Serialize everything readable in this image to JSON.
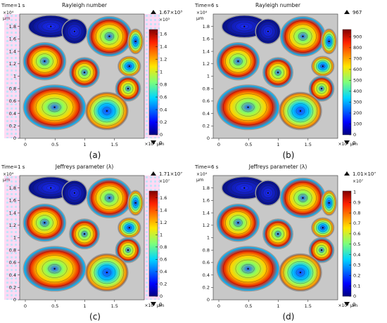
{
  "chart_data": [
    {
      "type": "heatmap",
      "panel": "(a)",
      "time_label": "Time=1 s",
      "title": "Rayleigh number",
      "y_exponent": "×10⁴",
      "y_unit": "µm",
      "x_exponent": "×10⁴",
      "x_unit": "µm",
      "x_ticks": [
        "0",
        "0.5",
        "1",
        "1.5"
      ],
      "y_ticks": [
        "0",
        "0.2",
        "0.4",
        "0.6",
        "0.8",
        "1",
        "1.2",
        "1.4",
        "1.6",
        "1.8"
      ],
      "colorbar": {
        "max_label": "1.67×10³",
        "exponent": "×10³",
        "ticks": [
          "0",
          "0.2",
          "0.4",
          "0.6",
          "0.8",
          "1",
          "1.2",
          "1.4",
          "1.6"
        ],
        "min_label": "0",
        "range": [
          0,
          1.67
        ]
      }
    },
    {
      "type": "heatmap",
      "panel": "(b)",
      "time_label": "Time=6 s",
      "title": "Rayleigh number",
      "y_exponent": "×10⁴",
      "y_unit": "µm",
      "x_exponent": "×10⁴",
      "x_unit": "µm",
      "x_ticks": [
        "0",
        "0.5",
        "1",
        "1.5"
      ],
      "y_ticks": [
        "0",
        "0.2",
        "0.4",
        "0.6",
        "0.8",
        "1",
        "1.2",
        "1.4",
        "1.6",
        "1.8"
      ],
      "colorbar": {
        "max_label": "967",
        "exponent": "",
        "ticks": [
          "0",
          "100",
          "200",
          "300",
          "400",
          "500",
          "600",
          "700",
          "800",
          "900"
        ],
        "min_label": "0",
        "range": [
          0,
          967
        ]
      }
    },
    {
      "type": "heatmap",
      "panel": "(c)",
      "time_label": "Time=1 s",
      "title": "Jeffreys parameter (λ)",
      "y_exponent": "×10⁴",
      "y_unit": "µm",
      "x_exponent": "×10⁴",
      "x_unit": "µm",
      "x_ticks": [
        "0",
        "0.5",
        "1",
        "1.5"
      ],
      "y_ticks": [
        "0",
        "0.2",
        "0.4",
        "0.6",
        "0.8",
        "1",
        "1.2",
        "1.4",
        "1.6",
        "1.8"
      ],
      "colorbar": {
        "max_label": "1.71×10⁷",
        "exponent": "×10⁷",
        "ticks": [
          "0",
          "0.2",
          "0.4",
          "0.6",
          "0.8",
          "1",
          "1.2",
          "1.4",
          "1.6"
        ],
        "min_label": "0",
        "range": [
          0,
          1.71
        ]
      }
    },
    {
      "type": "heatmap",
      "panel": "(d)",
      "time_label": "Time=6 s",
      "title": "Jeffreys parameter (λ)",
      "y_exponent": "×10⁴",
      "y_unit": "µm",
      "x_exponent": "×10⁴",
      "x_unit": "µm",
      "x_ticks": [
        "0",
        "0.5",
        "1",
        "1.5"
      ],
      "y_ticks": [
        "0",
        "0.2",
        "0.4",
        "0.6",
        "0.8",
        "1",
        "1.2",
        "1.4",
        "1.6",
        "1.8"
      ],
      "colorbar": {
        "max_label": "1.01×10⁷",
        "exponent": "×10⁷",
        "ticks": [
          "0",
          "0.1",
          "0.2",
          "0.3",
          "0.4",
          "0.5",
          "0.6",
          "0.7",
          "0.8",
          "0.9",
          "1"
        ],
        "min_label": "0",
        "range": [
          0,
          1.01
        ]
      }
    }
  ]
}
